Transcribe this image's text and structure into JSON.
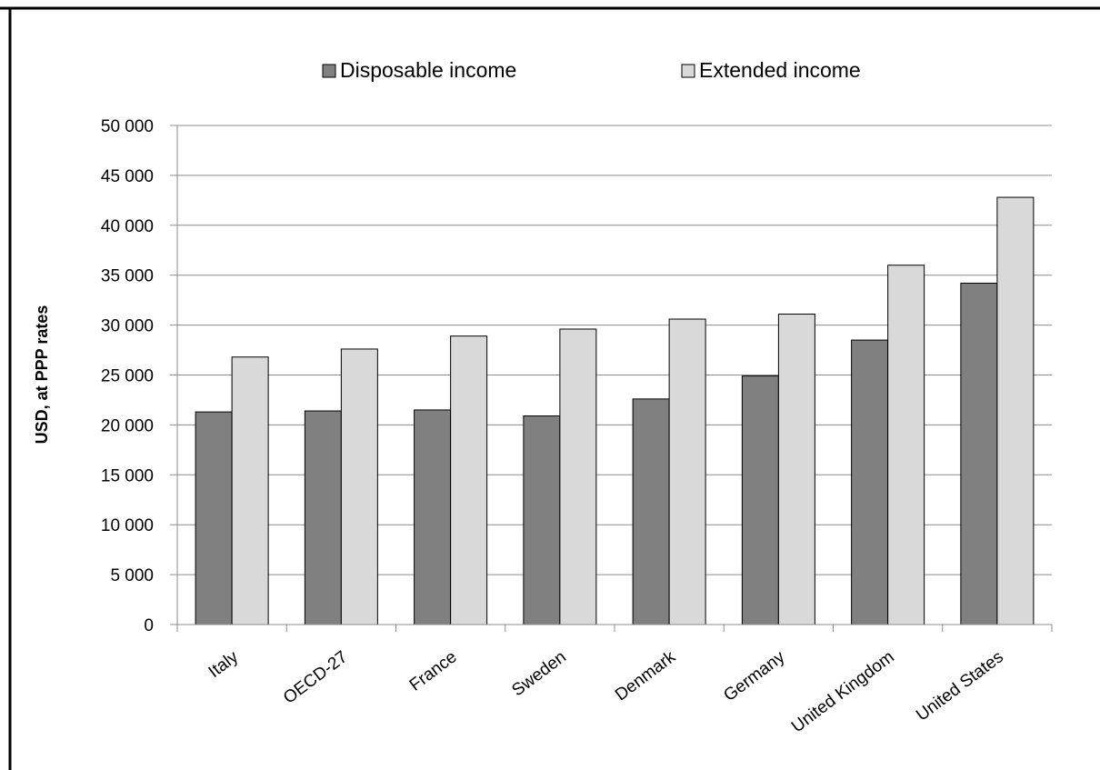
{
  "chart_data": {
    "type": "bar",
    "title": "",
    "xlabel": "",
    "ylabel": "USD, at PPP rates",
    "ylim": [
      0,
      50000
    ],
    "ytick_step": 5000,
    "ytick_labels": [
      "0",
      "5 000",
      "10 000",
      "15 000",
      "20 000",
      "25 000",
      "30 000",
      "35 000",
      "40 000",
      "45 000",
      "50 000"
    ],
    "grid": true,
    "legend_position": "top-center",
    "categories": [
      "Italy",
      "OECD-27",
      "France",
      "Sweden",
      "Denmark",
      "Germany",
      "United Kingdom",
      "United States"
    ],
    "series": [
      {
        "name": "Disposable income",
        "color": "#808080",
        "values": [
          21300,
          21400,
          21500,
          20900,
          22600,
          24900,
          28500,
          34200
        ]
      },
      {
        "name": "Extended income",
        "color": "#d9d9d9",
        "values": [
          26800,
          27600,
          28900,
          29600,
          30600,
          31100,
          36000,
          42800
        ]
      }
    ]
  }
}
